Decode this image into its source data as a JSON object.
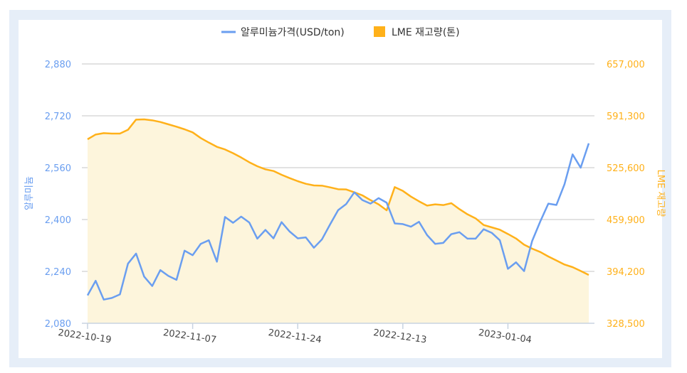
{
  "chart_data": {
    "type": "line",
    "legend": {
      "placement": "top"
    },
    "grid": true,
    "x_ticks": [
      {
        "index": 0,
        "label": "2022-10-19"
      },
      {
        "index": 13,
        "label": "2022-11-07"
      },
      {
        "index": 26,
        "label": "2022-11-24"
      },
      {
        "index": 39,
        "label": "2022-12-13"
      },
      {
        "index": 52,
        "label": "2023-01-04"
      }
    ],
    "y_left": {
      "label": "알루미늄",
      "range": [
        2080,
        2880
      ],
      "ticks": [
        "2,080",
        "2,240",
        "2,400",
        "2,560",
        "2,720",
        "2,880"
      ],
      "color": "#6a9ef0"
    },
    "y_right": {
      "label": "LME 재고량",
      "range": [
        328500,
        657000
      ],
      "ticks": [
        "328,500",
        "394,200",
        "459,900",
        "525,600",
        "591,300",
        "657,000"
      ],
      "color": "#ffb11a"
    },
    "series": [
      {
        "name": "알루미늄가격(USD/ton)",
        "axis": "left",
        "type": "line",
        "color": "#6a9ef0",
        "values": [
          2166,
          2211,
          2153,
          2158,
          2169,
          2264,
          2295,
          2224,
          2195,
          2244,
          2226,
          2214,
          2304,
          2290,
          2325,
          2336,
          2270,
          2408,
          2390,
          2409,
          2391,
          2341,
          2368,
          2342,
          2392,
          2363,
          2342,
          2345,
          2313,
          2339,
          2385,
          2429,
          2448,
          2484,
          2460,
          2449,
          2466,
          2452,
          2388,
          2386,
          2378,
          2393,
          2352,
          2325,
          2328,
          2355,
          2361,
          2341,
          2341,
          2370,
          2359,
          2336,
          2248,
          2268,
          2241,
          2334,
          2394,
          2449,
          2445,
          2509,
          2601,
          2560,
          2635
        ]
      },
      {
        "name": "LME 재고량(톤)",
        "axis": "right",
        "type": "area",
        "color": "#ffb11a",
        "fill": "#fdf5dc",
        "values": [
          561600,
          567600,
          569400,
          568800,
          568800,
          573600,
          586500,
          586800,
          585600,
          583500,
          580500,
          577500,
          574200,
          570300,
          563100,
          557400,
          552000,
          548700,
          543900,
          538500,
          532500,
          527400,
          523500,
          521400,
          516600,
          512400,
          508500,
          505200,
          503100,
          502800,
          500700,
          498300,
          498000,
          494400,
          490500,
          484500,
          479100,
          471600,
          501000,
          496200,
          489000,
          483000,
          477600,
          479100,
          478200,
          480600,
          473100,
          466500,
          461400,
          453000,
          450000,
          447000,
          441600,
          435900,
          428100,
          423000,
          418800,
          413100,
          408000,
          402900,
          399600,
          394800,
          389700
        ]
      }
    ]
  }
}
